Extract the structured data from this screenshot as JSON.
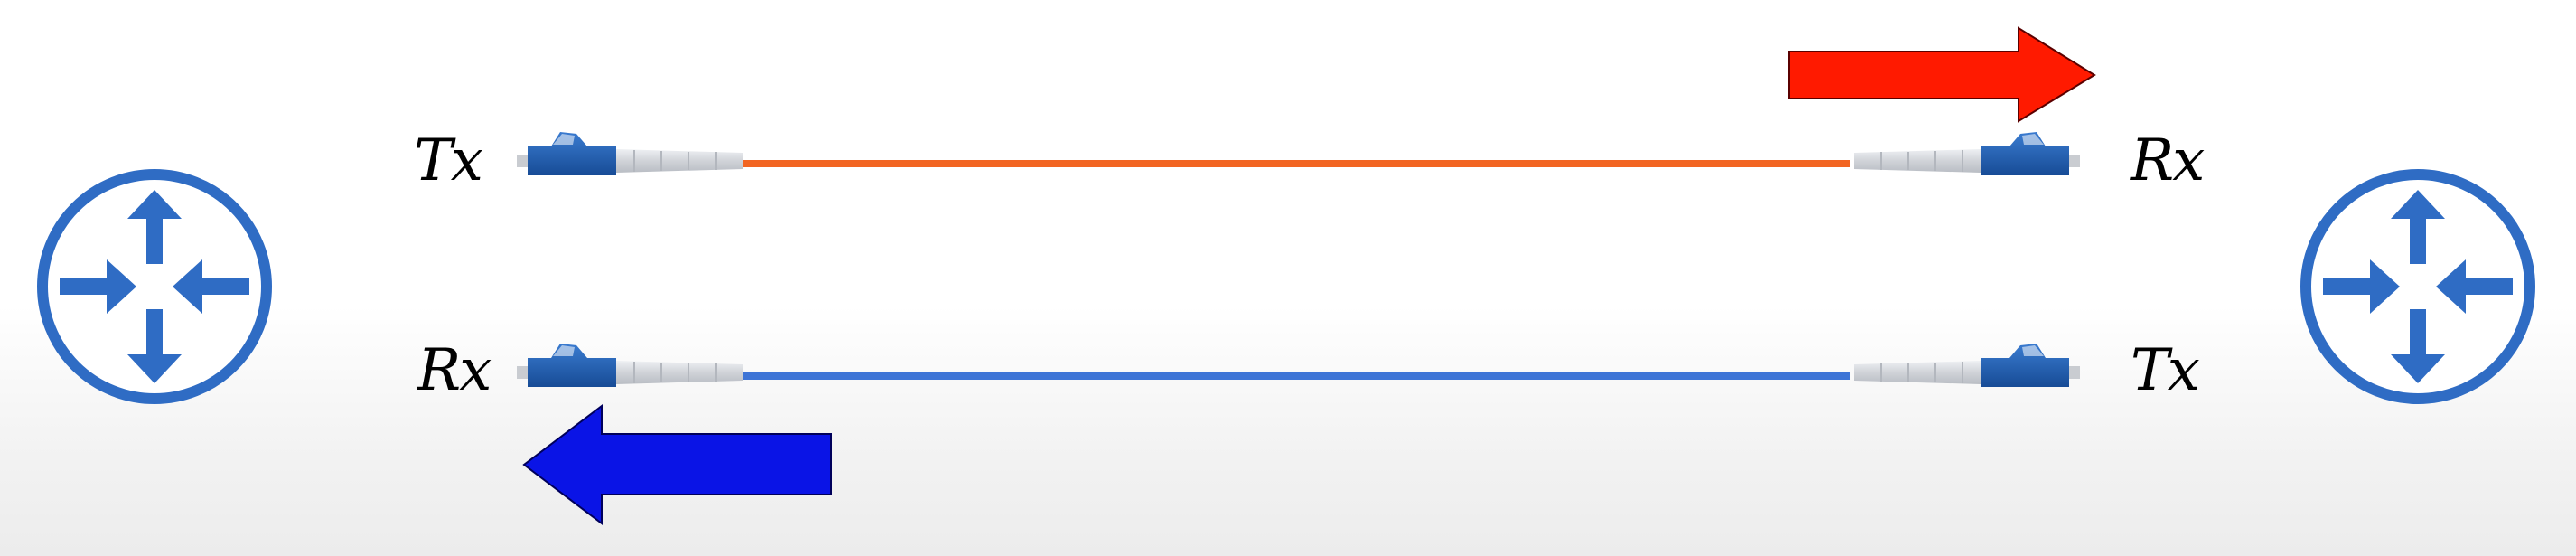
{
  "labels": {
    "left_top": "Tx",
    "left_bottom": "Rx",
    "right_top": "Rx",
    "right_bottom": "Tx"
  },
  "icons": {
    "left_router": "router-icon",
    "right_router": "router-icon",
    "connector": "lc-fiber-connector-icon",
    "top_arrow": "arrow-right-icon",
    "bottom_arrow": "arrow-left-icon"
  },
  "colors": {
    "router": "#2f6cc4",
    "top_fiber": "#f26522",
    "bottom_fiber": "#3d74d6",
    "top_arrow": "#ff1a00",
    "bottom_arrow": "#0a14e6",
    "connector_body": "#1e5aa8",
    "connector_boot": "#d4d6da"
  }
}
